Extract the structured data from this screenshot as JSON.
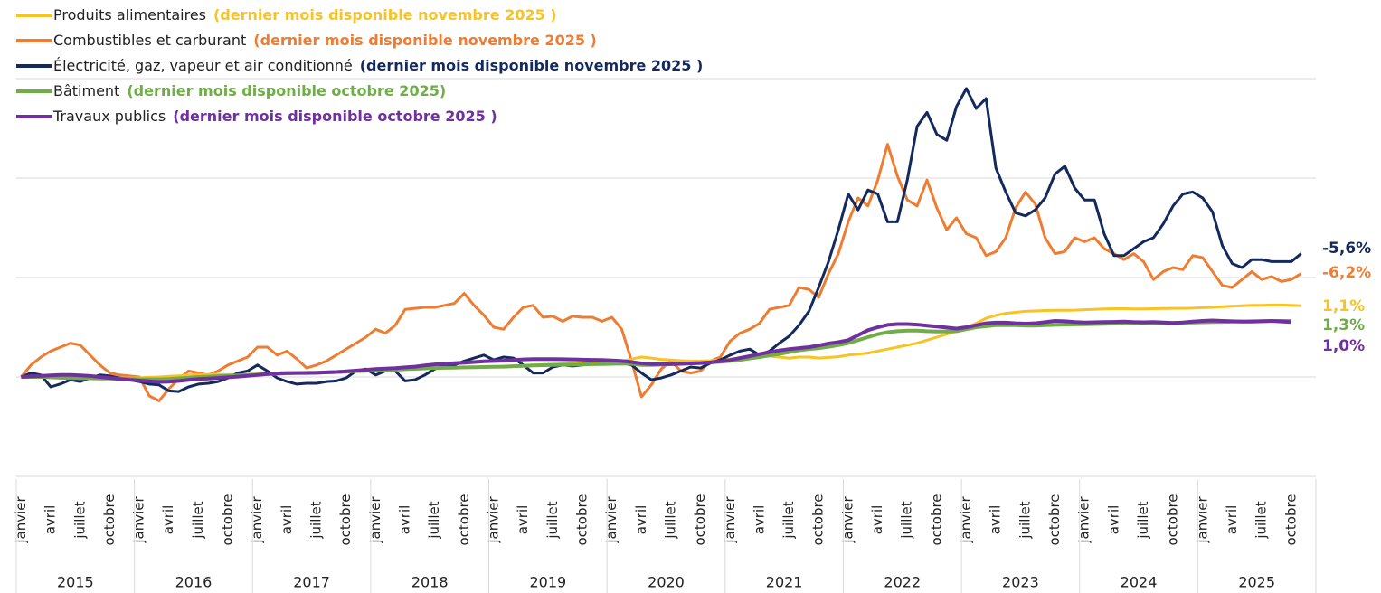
{
  "chart_data": {
    "type": "line",
    "categories": [
      "janvier",
      null,
      null,
      "avril",
      null,
      null,
      "juillet",
      null,
      null,
      "octobre",
      null,
      null,
      "janvier",
      null,
      null,
      "avril",
      null,
      null,
      "juillet",
      null,
      null,
      "octobre",
      null,
      null,
      "janvier",
      null,
      null,
      "avril",
      null,
      null,
      "juillet",
      null,
      null,
      "octobre",
      null,
      null,
      "janvier",
      null,
      null,
      "avril",
      null,
      null,
      "juillet",
      null,
      null,
      "octobre",
      null,
      null,
      "janvier",
      null,
      null,
      "avril",
      null,
      null,
      "juillet",
      null,
      null,
      "octobre",
      null,
      null,
      "janvier",
      null,
      null,
      "avril",
      null,
      null,
      "juillet",
      null,
      null,
      "octobre",
      null,
      null,
      "janvier",
      null,
      null,
      "avril",
      null,
      null,
      "juillet",
      null,
      null,
      "octobre",
      null,
      null,
      "janvier",
      null,
      null,
      "avril",
      null,
      null,
      "juillet",
      null,
      null,
      "octobre",
      null,
      null,
      "janvier",
      null,
      null,
      "avril",
      null,
      null,
      "juillet",
      null,
      null,
      "octobre",
      null,
      null,
      "janvier",
      null,
      null,
      "avril",
      null,
      null,
      "juillet",
      null,
      null,
      "octobre",
      null,
      null,
      "janvier",
      null,
      null,
      "avril",
      null,
      null,
      "juillet",
      null,
      null,
      "octobre",
      null
    ],
    "years": [
      "2015",
      "2016",
      "2017",
      "2018",
      "2019",
      "2020",
      "2021",
      "2022",
      "2023",
      "2024",
      "2025"
    ],
    "ylim": [
      50,
      250
    ],
    "yticks": [
      50,
      100,
      150,
      200,
      250
    ],
    "grid": true,
    "series": [
      {
        "name": "Produits alimentaires",
        "note": "(dernier mois disponible  novembre 2025 )",
        "end_label": "1,1%",
        "color": "#f7c325",
        "values": [
          100,
          100.2,
          100,
          99.8,
          99.6,
          99.4,
          99.3,
          99.2,
          99.2,
          99.3,
          99.4,
          99.5,
          99.6,
          99.8,
          100,
          100.3,
          100.6,
          101,
          101.2,
          101.3,
          101.3,
          101.2,
          101.2,
          101.3,
          101.5,
          101.7,
          101.9,
          102,
          102.1,
          102.2,
          102.3,
          102.4,
          102.5,
          102.6,
          102.8,
          103,
          103.2,
          103.4,
          103.6,
          103.8,
          104,
          104.2,
          104.4,
          104.5,
          104.6,
          104.7,
          104.8,
          105,
          105.2,
          105.4,
          105.6,
          105.8,
          106,
          106.2,
          106.4,
          106.6,
          106.8,
          107,
          107.2,
          107.4,
          107.6,
          107.8,
          109,
          110,
          109.5,
          108.8,
          108.5,
          108.2,
          108,
          108,
          108.2,
          108.5,
          109,
          109.5,
          110,
          110.5,
          110.5,
          110,
          109.5,
          110,
          110,
          109.5,
          109.8,
          110.2,
          111,
          111.5,
          112,
          113,
          114,
          115,
          116,
          117,
          118.5,
          120,
          121.5,
          123,
          125,
          127,
          129.5,
          131,
          132,
          132.5,
          133,
          133.2,
          133.4,
          133.5,
          133.5,
          133.6,
          133.8,
          134,
          134.2,
          134.3,
          134.3,
          134.2,
          134.2,
          134.3,
          134.4,
          134.5,
          134.5,
          134.6,
          134.8,
          135,
          135.3,
          135.6,
          135.8,
          136,
          136,
          136.2,
          136.2,
          136,
          135.8
        ]
      },
      {
        "name": "Combustibles et carburant",
        "note": "(dernier mois disponible novembre 2025 )",
        "end_label": "-6,2%",
        "color": "#ee7d31",
        "values": [
          100,
          106,
          110,
          113,
          115,
          117,
          116,
          111,
          106,
          102,
          101,
          100.5,
          100,
          90.5,
          88,
          94,
          99,
          103,
          102,
          101,
          103,
          106,
          108,
          110,
          115,
          115,
          111,
          113,
          109,
          104.5,
          106,
          108,
          111,
          114,
          117,
          120,
          124,
          122,
          126,
          134,
          134.5,
          135,
          135,
          136,
          137,
          142,
          136,
          131,
          125,
          124,
          130,
          135,
          136,
          130,
          130.5,
          128,
          130.5,
          130,
          130,
          128,
          130,
          124,
          108,
          90,
          96,
          104,
          108,
          103,
          102,
          103,
          108,
          110,
          118,
          122,
          124,
          127,
          134,
          135,
          136,
          145,
          144,
          140,
          152,
          162,
          178,
          190,
          186,
          199,
          217,
          201,
          189,
          186,
          199,
          185,
          174,
          180,
          172,
          170,
          161,
          163,
          170,
          185,
          193,
          187,
          170,
          162,
          163,
          170,
          168,
          170,
          164.5,
          162,
          159,
          162,
          158,
          149,
          153,
          155,
          154,
          161,
          160,
          153,
          146,
          145,
          149,
          153,
          149,
          150.5,
          148,
          149,
          152
        ]
      },
      {
        "name": "Électricité, gaz, vapeur et air conditionné",
        "note": "(dernier mois disponible novembre 2025 )",
        "end_label": "-5,6%",
        "color": "#142a5c",
        "values": [
          100,
          102,
          101,
          95,
          96.5,
          98.6,
          97.7,
          99.5,
          101,
          100.5,
          99.5,
          98.6,
          97.7,
          96.4,
          96,
          93,
          92.7,
          95,
          96.4,
          96.8,
          97.7,
          99.5,
          102,
          103,
          106,
          103,
          99.5,
          97.7,
          96.4,
          96.8,
          96.8,
          97.7,
          98,
          99.5,
          103,
          104,
          101,
          103,
          103,
          98,
          98.6,
          101,
          104,
          106,
          106,
          108,
          109.5,
          111,
          108.6,
          110,
          109.5,
          106,
          102,
          102,
          105,
          106,
          105.5,
          106,
          108.6,
          108,
          108,
          107,
          106,
          102,
          98.6,
          99.5,
          101,
          103,
          105,
          104.5,
          107,
          108.6,
          111,
          113,
          114,
          111,
          113,
          117,
          120.5,
          126,
          133,
          145,
          158,
          174,
          192,
          184,
          194,
          192,
          178,
          178,
          199,
          226,
          233,
          222,
          219,
          236,
          245,
          235,
          240,
          205,
          193,
          182.5,
          181,
          184,
          190,
          202,
          206,
          195,
          189,
          189,
          172,
          161,
          161,
          164.5,
          168,
          170,
          177,
          186,
          192,
          193,
          190,
          183,
          166,
          157,
          155,
          159,
          159,
          158,
          158,
          158,
          162
        ]
      },
      {
        "name": "Bâtiment",
        "note": "(dernier mois disponible octobre 2025)",
        "end_label": "1,3%",
        "color": "#70ad47",
        "values": [
          100,
          100,
          100,
          99.8,
          99.6,
          99.5,
          99.4,
          99.3,
          99.2,
          99.2,
          99.1,
          99,
          98.8,
          98.8,
          98.8,
          99,
          99.3,
          99.6,
          100,
          100.2,
          100.4,
          100.6,
          100.8,
          101,
          101.2,
          101.4,
          101.6,
          101.8,
          102,
          102.1,
          102.2,
          102.3,
          102.5,
          102.7,
          102.9,
          103.1,
          103.3,
          103.5,
          103.7,
          103.9,
          104.1,
          104.3,
          104.5,
          104.6,
          104.7,
          104.8,
          104.9,
          105,
          105.1,
          105.2,
          105.4,
          105.6,
          105.8,
          105.9,
          106,
          106.1,
          106.2,
          106.3,
          106.4,
          106.5,
          106.6,
          106.7,
          106.6,
          106,
          106,
          106.2,
          106.4,
          106.6,
          106.8,
          107,
          107.3,
          107.6,
          108,
          108.6,
          109.3,
          110,
          110.8,
          111.6,
          112.5,
          113.4,
          114,
          114.5,
          115.2,
          116,
          117,
          118.5,
          120,
          121.5,
          122.5,
          123,
          123.3,
          123.3,
          123,
          122.8,
          122.8,
          123,
          124,
          125,
          125.5,
          126,
          126,
          126,
          125.8,
          125.8,
          126,
          126.2,
          126.3,
          126.4,
          126.5,
          126.6,
          126.7,
          126.8,
          126.8,
          126.9,
          127,
          127,
          127.1,
          127.2,
          127.3,
          127.4,
          127.5,
          127.6,
          127.7,
          127.8,
          127.9,
          128,
          128.1,
          128.2,
          128.2,
          128.2,
          null
        ]
      },
      {
        "name": "Travaux publics",
        "note": "(dernier mois disponible octobre 2025 )",
        "end_label": "1,0%",
        "color": "#7030a0",
        "values": [
          100,
          100.3,
          100.5,
          100.8,
          101,
          101,
          100.8,
          100.5,
          100,
          99.5,
          99,
          98.6,
          98.2,
          97.8,
          97.5,
          97.6,
          98,
          98.5,
          99,
          99.2,
          99.5,
          99.8,
          100.2,
          100.6,
          101,
          101.5,
          101.8,
          102,
          102,
          102,
          102.1,
          102.3,
          102.5,
          102.8,
          103.2,
          103.6,
          104,
          104.2,
          104.4,
          104.8,
          105.2,
          105.8,
          106.3,
          106.6,
          106.9,
          107.2,
          107.5,
          107.8,
          108,
          108.2,
          108.5,
          108.8,
          109,
          109,
          109,
          108.9,
          108.8,
          108.7,
          108.6,
          108.5,
          108.3,
          108,
          107.5,
          106.8,
          106.5,
          106.5,
          106.5,
          106.6,
          106.8,
          107,
          107.3,
          107.8,
          108.5,
          109.5,
          110.5,
          111.5,
          112.5,
          113.3,
          114,
          114.5,
          115,
          115.8,
          116.8,
          117.5,
          118.5,
          121,
          123.5,
          125,
          126.2,
          126.6,
          126.6,
          126.3,
          125.8,
          125.3,
          124.8,
          124.3,
          125,
          126,
          127,
          127.3,
          127.3,
          127,
          126.8,
          127,
          127.6,
          128.2,
          128,
          127.6,
          127.4,
          127.5,
          127.6,
          127.7,
          127.8,
          127.6,
          127.5,
          127.6,
          127.4,
          127.2,
          127.4,
          127.8,
          128.2,
          128.4,
          128.2,
          128,
          127.8,
          127.8,
          128,
          128.2,
          127.9,
          127.6,
          null
        ]
      }
    ]
  }
}
